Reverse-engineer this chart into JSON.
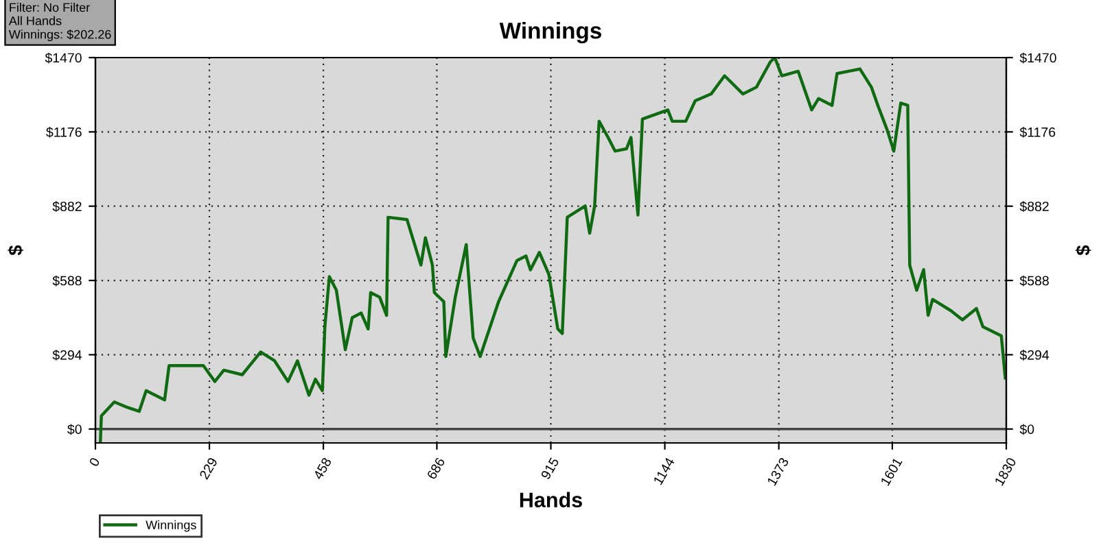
{
  "chart_data": {
    "type": "line",
    "title": "Winnings",
    "xlabel": "Hands",
    "ylabel": "$",
    "y2label": "$",
    "annotations": [
      "Filter: No Filter\nAll Hands\nWinnings: $202.26"
    ],
    "series": [
      {
        "name": "Winnings",
        "color": "#0f6a12",
        "x": [
          10,
          12,
          38,
          61,
          88,
          102,
          139,
          148,
          217,
          240,
          258,
          295,
          332,
          360,
          387,
          406,
          429,
          442,
          456,
          461,
          470,
          484,
          502,
          516,
          534,
          548,
          553,
          571,
          585,
          588,
          626,
          654,
          663,
          677,
          681,
          700,
          704,
          723,
          745,
          759,
          773,
          810,
          847,
          865,
          874,
          892,
          911,
          929,
          938,
          948,
          984,
          993,
          1003,
          1012,
          1030,
          1044,
          1067,
          1076,
          1090,
          1099,
          1150,
          1159,
          1186,
          1205,
          1237,
          1264,
          1301,
          1328,
          1356,
          1365,
          1379,
          1412,
          1439,
          1453,
          1480,
          1490,
          1536,
          1559,
          1572,
          1591,
          1604,
          1618,
          1632,
          1636,
          1650,
          1664,
          1673,
          1682,
          1719,
          1742,
          1770,
          1783,
          1820,
          1828
        ],
        "values": [
          -50,
          52,
          107,
          88,
          70,
          152,
          115,
          251,
          251,
          188,
          233,
          215,
          305,
          270,
          188,
          270,
          134,
          197,
          152,
          405,
          603,
          550,
          314,
          441,
          459,
          396,
          540,
          522,
          450,
          838,
          829,
          649,
          757,
          649,
          540,
          504,
          287,
          522,
          730,
          360,
          287,
          504,
          667,
          685,
          630,
          699,
          612,
          396,
          378,
          838,
          883,
          775,
          883,
          1218,
          1154,
          1100,
          1109,
          1154,
          847,
          1227,
          1263,
          1218,
          1218,
          1299,
          1326,
          1398,
          1326,
          1353,
          1453,
          1470,
          1398,
          1416,
          1263,
          1308,
          1281,
          1407,
          1425,
          1353,
          1281,
          1182,
          1100,
          1290,
          1281,
          649,
          549,
          631,
          450,
          513,
          468,
          432,
          477,
          405,
          369,
          202
        ]
      }
    ],
    "xlim": [
      0,
      1830
    ],
    "xticks": [
      0,
      229,
      458,
      686,
      915,
      1144,
      1373,
      1601,
      1830
    ],
    "ylim": [
      -55,
      1470
    ],
    "yticks": [
      {
        "value": 0,
        "label": "$0"
      },
      {
        "value": 294,
        "label": "$294"
      },
      {
        "value": 588,
        "label": "$588"
      },
      {
        "value": 882,
        "label": "$882"
      },
      {
        "value": 1176,
        "label": "$1176"
      },
      {
        "value": 1470,
        "label": "$1470"
      }
    ],
    "y2lim": [
      -55,
      1470
    ],
    "y2ticks": [
      {
        "value": 0,
        "label": "$0"
      },
      {
        "value": 294,
        "label": "$294"
      },
      {
        "value": 588,
        "label": "$588"
      },
      {
        "value": 882,
        "label": "$882"
      },
      {
        "value": 1176,
        "label": "$1176"
      },
      {
        "value": 1470,
        "label": "$1470"
      }
    ],
    "ref_lines": [
      {
        "axis": "y",
        "value": 0,
        "label": null,
        "color": "#444444"
      }
    ],
    "grid": true,
    "legend": "bottom left",
    "marker": "none",
    "line_style": "solid"
  }
}
